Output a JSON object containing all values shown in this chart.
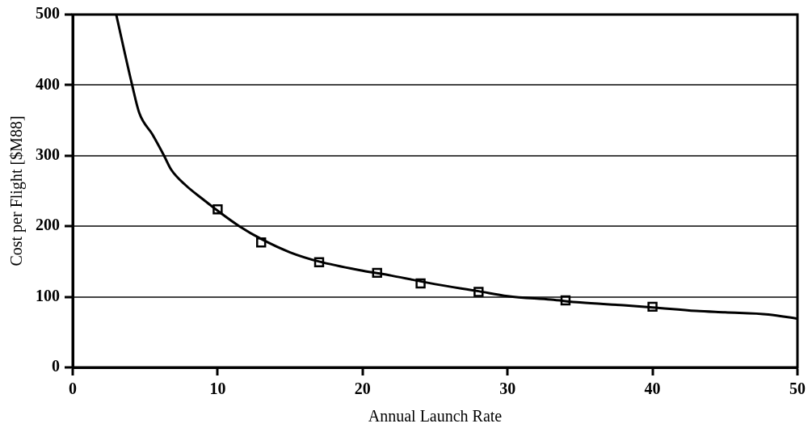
{
  "chart_data": {
    "type": "line",
    "xlabel": "Annual Launch Rate",
    "ylabel": "Cost per Flight [$M88]",
    "xlim": [
      0,
      50
    ],
    "xticks": [
      0,
      10,
      20,
      30,
      40,
      50
    ],
    "ylim": [
      0,
      500
    ],
    "yticks": [
      0,
      100,
      200,
      300,
      400,
      500
    ],
    "grid": "y",
    "line_style": "solid",
    "series": [
      {
        "color": "#000000",
        "marker": "none",
        "x": [
          3,
          4.1,
          4.6,
          5.5,
          6.3,
          6.8,
          7.8,
          9,
          10,
          11.5,
          13,
          15,
          17,
          20,
          22,
          25,
          28,
          30,
          33,
          35,
          38,
          40,
          43,
          45,
          48,
          50
        ],
        "values": [
          500,
          400,
          360,
          330,
          300,
          280,
          258,
          238,
          222,
          200,
          182,
          163,
          150,
          137,
          130,
          118,
          108,
          101,
          96,
          92,
          88,
          85,
          80,
          78,
          75,
          69
        ]
      },
      {
        "type": "scatter",
        "color": "#000000",
        "marker": "square",
        "x": [
          10,
          13,
          17,
          21,
          24,
          28,
          34,
          40
        ],
        "values": [
          224,
          177,
          149,
          134,
          119,
          107,
          95,
          86
        ]
      }
    ]
  }
}
